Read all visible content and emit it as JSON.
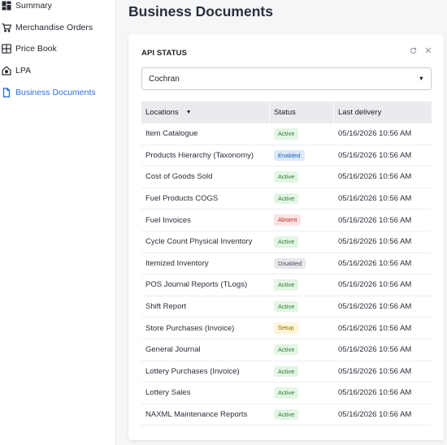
{
  "sidebar": {
    "items": [
      {
        "label": "Summary",
        "icon": "dashboard-icon",
        "active": false
      },
      {
        "label": "Merchandise Orders",
        "icon": "cart-icon",
        "active": false
      },
      {
        "label": "Price Book",
        "icon": "grid-book-icon",
        "active": false
      },
      {
        "label": "LPA",
        "icon": "house-shield-icon",
        "active": false
      },
      {
        "label": "Business Documents",
        "icon": "document-icon",
        "active": true
      }
    ]
  },
  "page": {
    "title": "Business Documents"
  },
  "card": {
    "title": "API STATUS",
    "refresh_icon": "refresh-icon",
    "close_icon": "close-icon",
    "store_select": {
      "value": "Cochran"
    }
  },
  "table": {
    "columns": [
      "Locations",
      "Status",
      "Last delivery"
    ],
    "rows": [
      {
        "location": "Item Catalogue",
        "status": "Active",
        "last_delivery": "05/16/2026 10:56 AM"
      },
      {
        "location": "Products Hierarchy (Taxonomy)",
        "status": "Enabled",
        "last_delivery": "05/16/2026 10:56 AM"
      },
      {
        "location": "Cost of Goods Sold",
        "status": "Active",
        "last_delivery": "05/16/2026 10:56 AM"
      },
      {
        "location": "Fuel Products COGS",
        "status": "Active",
        "last_delivery": "05/16/2026 10:56 AM"
      },
      {
        "location": "Fuel Invoices",
        "status": "Absent",
        "last_delivery": "05/16/2026 10:56 AM"
      },
      {
        "location": "Cycle Count Physical Inventory",
        "status": "Active",
        "last_delivery": "05/16/2026 10:56 AM"
      },
      {
        "location": "Itemized Inventory",
        "status": "Disabled",
        "last_delivery": "05/16/2026 10:56 AM"
      },
      {
        "location": "POS Journal Reports (TLogs)",
        "status": "Active",
        "last_delivery": "05/16/2026 10:56 AM"
      },
      {
        "location": "Shift Report",
        "status": "Active",
        "last_delivery": "05/16/2026 10:56 AM"
      },
      {
        "location": "Store Purchases (Invoice)",
        "status": "Setup",
        "last_delivery": "05/16/2026 10:56 AM"
      },
      {
        "location": "General Journal",
        "status": "Active",
        "last_delivery": "05/16/2026 10:56 AM"
      },
      {
        "location": "Lottery Purchases (Invoice)",
        "status": "Active",
        "last_delivery": "05/16/2026 10:56 AM"
      },
      {
        "location": "Lottery Sales",
        "status": "Active",
        "last_delivery": "05/16/2026 10:56 AM"
      },
      {
        "location": "NAXML Maintenance Reports",
        "status": "Active",
        "last_delivery": "05/16/2026 10:56 AM"
      }
    ]
  },
  "colors": {
    "accent": "#2f6de0",
    "header_bg": "#e9ebee",
    "page_bg": "#f5f6f8"
  }
}
